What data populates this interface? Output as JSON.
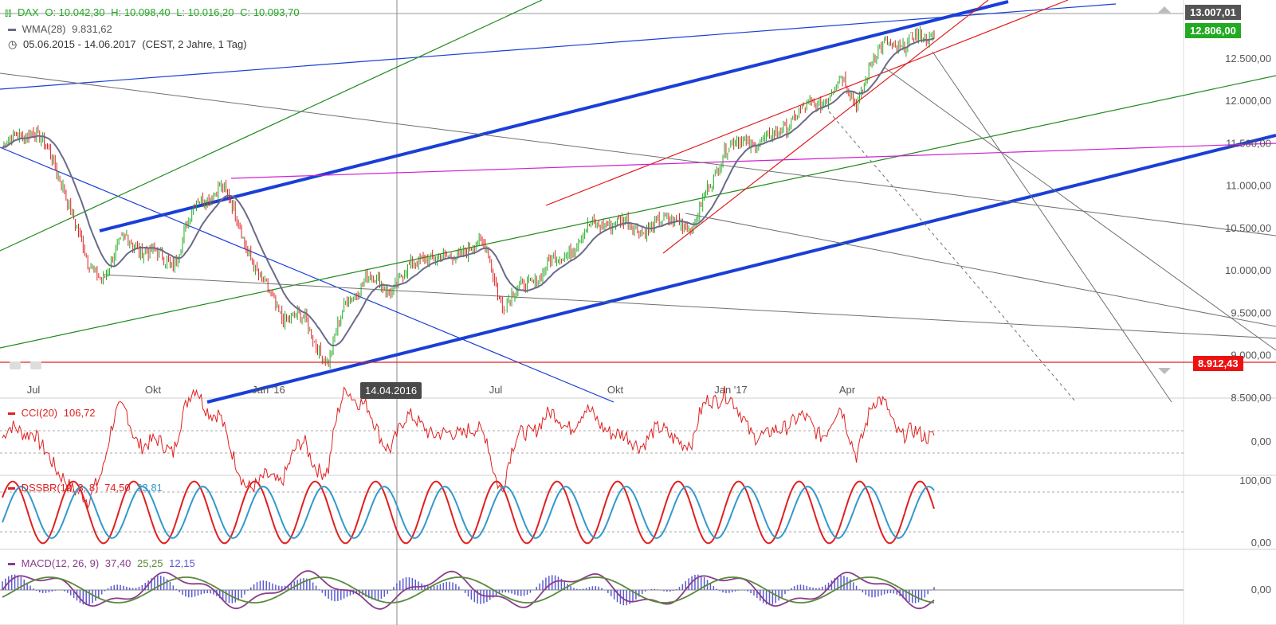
{
  "chart_data": [
    {
      "type": "candlestick",
      "symbol": "DAX",
      "ohlc": {
        "open": "O: 10.042,30",
        "high": "H: 10.098,40",
        "low": "L: 10.016,20",
        "close": "C: 10.093,70"
      },
      "wma_label": "WMA(28)",
      "wma_value": "9.831,62",
      "period": "05.06.2015 - 14.06.2017",
      "period_info": "(CEST, 2 Jahre, 1 Tag)",
      "x_ticks": [
        "Jul",
        "Okt",
        "Jan '16",
        "Apr",
        "Jul",
        "Okt",
        "Jan '17",
        "Apr"
      ],
      "y_ticks": [
        "12.500,00",
        "12.000,00",
        "11.500,00",
        "11.000,00",
        "10.500,00",
        "10.000,00",
        "9.500,00",
        "9.000,00",
        "8.500,00"
      ],
      "ylim": [
        8500,
        13100
      ],
      "crosshair_date": "14.04.2016",
      "price_tags": {
        "upper": "13.007,01",
        "last": "12.806,00",
        "lower": "8.912,43"
      },
      "anchor_closes": [
        [
          0,
          11450
        ],
        [
          20,
          11700
        ],
        [
          40,
          11000
        ],
        [
          55,
          10050
        ],
        [
          65,
          9950
        ],
        [
          80,
          10400
        ],
        [
          95,
          10200
        ],
        [
          110,
          10100
        ],
        [
          125,
          10800
        ],
        [
          140,
          11000
        ],
        [
          152,
          10600
        ],
        [
          165,
          9900
        ],
        [
          180,
          9500
        ],
        [
          195,
          9400
        ],
        [
          210,
          8900
        ],
        [
          222,
          9700
        ],
        [
          235,
          9900
        ],
        [
          250,
          9800
        ],
        [
          262,
          10000
        ],
        [
          272,
          10200
        ],
        [
          285,
          10100
        ],
        [
          300,
          10300
        ],
        [
          312,
          10250
        ],
        [
          322,
          9600
        ],
        [
          335,
          9800
        ],
        [
          348,
          10000
        ],
        [
          362,
          10200
        ],
        [
          375,
          10450
        ],
        [
          390,
          10600
        ],
        [
          400,
          10550
        ],
        [
          412,
          10500
        ],
        [
          425,
          10550
        ],
        [
          435,
          10650
        ],
        [
          445,
          10450
        ],
        [
          455,
          11050
        ],
        [
          465,
          11400
        ],
        [
          478,
          11550
        ],
        [
          492,
          11500
        ],
        [
          505,
          11750
        ],
        [
          518,
          11900
        ],
        [
          530,
          12050
        ],
        [
          540,
          12250
        ],
        [
          550,
          12000
        ],
        [
          560,
          12450
        ],
        [
          570,
          12700
        ],
        [
          580,
          12650
        ],
        [
          592,
          12750
        ],
        [
          600,
          12806
        ]
      ]
    },
    {
      "type": "line",
      "label": "CCI(20)",
      "value": "106,72",
      "y_ticks": [
        "0,00"
      ]
    },
    {
      "type": "line",
      "label": "DSSBR(12, 3, 8)",
      "value_red": "74,50",
      "value_blue": "33,81",
      "y_ticks": [
        "100,00",
        "0,00"
      ]
    },
    {
      "type": "line",
      "label": "MACD(12, 26, 9)",
      "value_macd": "37,40",
      "value_signal": "25,25",
      "value_hist": "12,15",
      "y_ticks": [
        "0,00"
      ]
    }
  ],
  "colors": {
    "up": "#22aa22",
    "down": "#dd2222",
    "wma": "#6a6a8a",
    "trend_blue": "#1a3fd6",
    "trend_green": "#1f8a1f",
    "trend_red": "#e02020",
    "trend_magenta": "#d020d0",
    "trend_gray": "#707070",
    "cci": "#e02020",
    "dss_red": "#e02020",
    "dss_blue": "#3399cc",
    "macd_line": "#8a3d8a",
    "macd_signal": "#5a8a3a",
    "macd_hist": "#5a5ad0",
    "tag_gray": "#555555",
    "tag_green": "#22aa22",
    "tag_red": "#ee1111"
  }
}
